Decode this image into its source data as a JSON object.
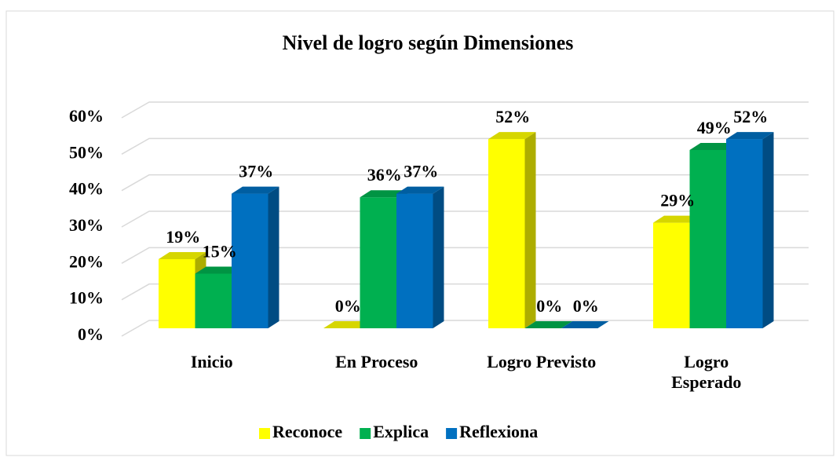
{
  "chart_data": {
    "type": "bar3d",
    "title": "Nivel de logro según Dimensiones",
    "categories": [
      "Inicio",
      "En Proceso",
      "Logro Previsto",
      "Logro Esperado"
    ],
    "series": [
      {
        "name": "Reconoce",
        "color": "#ffff00",
        "values": [
          19,
          0,
          52,
          29
        ],
        "value_labels": [
          "19%",
          "0%",
          "52%",
          "29%"
        ]
      },
      {
        "name": "Explica",
        "color": "#00b050",
        "values": [
          15,
          36,
          0,
          49
        ],
        "value_labels": [
          "15%",
          "36%",
          "0%",
          "49%"
        ]
      },
      {
        "name": "Reflexiona",
        "color": "#0070c0",
        "values": [
          37,
          37,
          0,
          52
        ],
        "value_labels": [
          "37%",
          "37%",
          "0%",
          "52%"
        ]
      }
    ],
    "ylim": [
      0,
      60
    ],
    "yticks": [
      {
        "value": 0,
        "label": "0%"
      },
      {
        "value": 10,
        "label": "10%"
      },
      {
        "value": 20,
        "label": "20%"
      },
      {
        "value": 30,
        "label": "30%"
      },
      {
        "value": 40,
        "label": "40%"
      },
      {
        "value": 50,
        "label": "50%"
      },
      {
        "value": 60,
        "label": "60%"
      }
    ],
    "grid": true,
    "legend": "bottom"
  }
}
